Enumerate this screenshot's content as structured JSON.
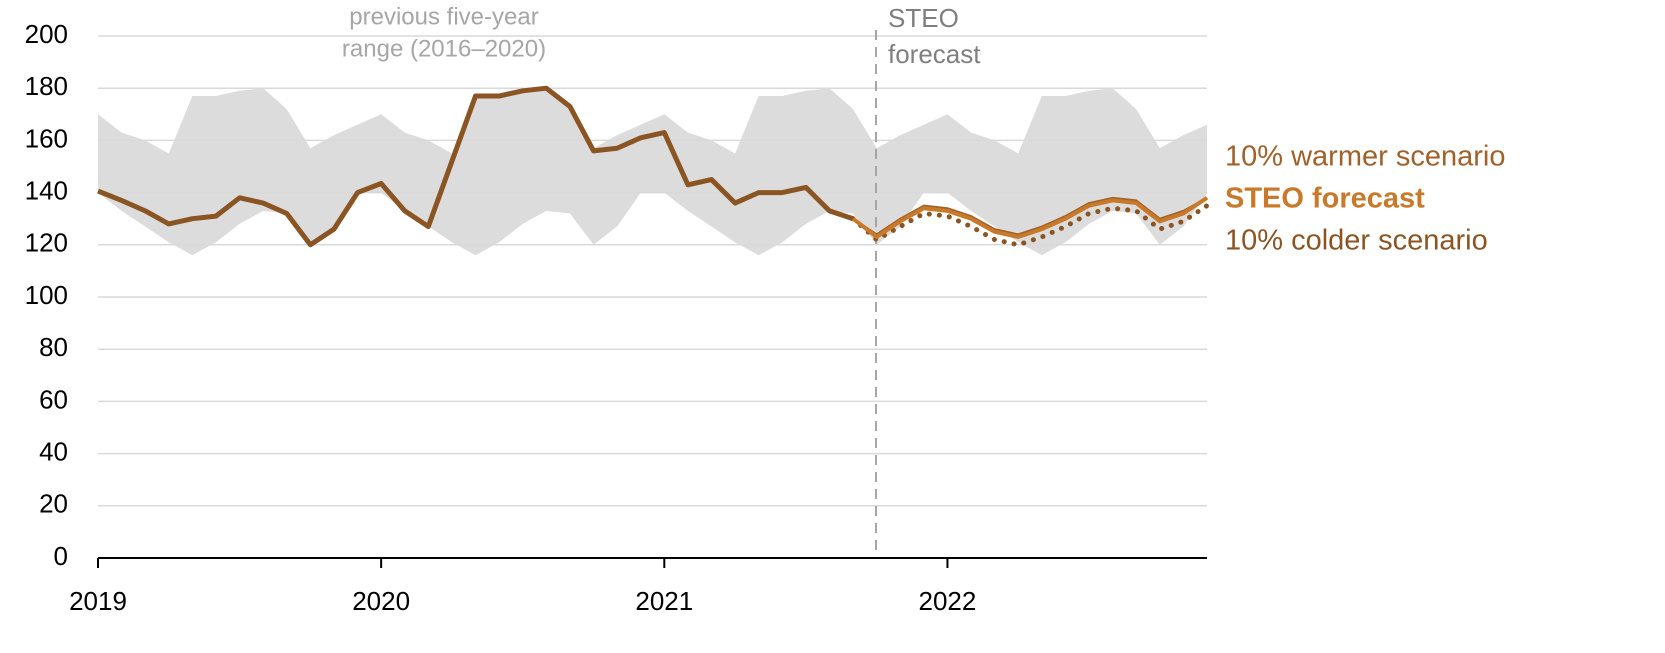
{
  "chart_data": {
    "type": "line",
    "categories": [
      "2019",
      null,
      null,
      null,
      null,
      null,
      null,
      null,
      null,
      null,
      null,
      null,
      "2020",
      null,
      null,
      null,
      null,
      null,
      null,
      null,
      null,
      null,
      null,
      null,
      "2021",
      null,
      null,
      null,
      null,
      null,
      null,
      null,
      null,
      null,
      null,
      null,
      "2022",
      null,
      null,
      null,
      null,
      null,
      null,
      null,
      null,
      null,
      null,
      null
    ],
    "ylim": [
      0,
      200
    ],
    "yticks": [
      0,
      20,
      40,
      60,
      80,
      100,
      120,
      140,
      160,
      180,
      200
    ],
    "grid": true,
    "range": {
      "label": [
        "previous five-year",
        "range (2016–2020)"
      ],
      "color": "#dcdcdc",
      "max": [
        170,
        163,
        160,
        155,
        177,
        177,
        179,
        180,
        172,
        157,
        162,
        166,
        170,
        163,
        160,
        155,
        177,
        177,
        179,
        180,
        172,
        157,
        162,
        166,
        170,
        163,
        160,
        155,
        177,
        177,
        179,
        180,
        172,
        157,
        162,
        166,
        170,
        163,
        160,
        155,
        177,
        177,
        179,
        180,
        172,
        157,
        162,
        166
      ],
      "min": [
        140,
        133,
        127,
        121,
        116,
        121,
        128,
        133,
        132,
        120,
        127,
        140,
        140,
        133,
        127,
        121,
        116,
        121,
        128,
        133,
        132,
        120,
        127,
        140,
        140,
        133,
        127,
        121,
        116,
        121,
        128,
        133,
        132,
        120,
        127,
        140,
        140,
        133,
        127,
        121,
        116,
        121,
        128,
        133,
        132,
        120,
        127,
        140
      ]
    },
    "forecast_label": [
      "STEO",
      "forecast"
    ],
    "series": [
      {
        "color": "#8b5523",
        "width": 5,
        "style": "solid",
        "values": [
          140.6,
          137,
          133,
          128,
          130,
          131,
          138,
          136,
          132,
          120,
          126,
          140,
          143.5,
          133,
          127,
          152,
          177,
          177,
          179,
          180,
          173,
          156,
          157,
          161,
          163,
          143,
          145,
          136,
          140,
          140,
          142,
          133,
          130,
          null,
          null,
          null,
          null,
          null,
          null,
          null,
          null,
          null,
          null,
          null,
          null,
          null,
          null,
          null
        ]
      },
      {
        "name": "10% warmer scenario",
        "color": "#a0612a",
        "width": 2,
        "style": "solid",
        "values": [
          null,
          null,
          null,
          null,
          null,
          null,
          null,
          null,
          null,
          null,
          null,
          null,
          null,
          null,
          null,
          null,
          null,
          null,
          null,
          null,
          null,
          null,
          null,
          null,
          null,
          null,
          null,
          null,
          null,
          null,
          null,
          null,
          130,
          124,
          130,
          135,
          134,
          131,
          126,
          124,
          127,
          131,
          136,
          138,
          137,
          130,
          133,
          138
        ]
      },
      {
        "name": "STEO forecast",
        "color": "#c87a2a",
        "width": 4,
        "style": "solid",
        "bold": true,
        "values": [
          null,
          null,
          null,
          null,
          null,
          null,
          null,
          null,
          null,
          null,
          null,
          null,
          null,
          null,
          null,
          null,
          null,
          null,
          null,
          null,
          null,
          null,
          null,
          null,
          null,
          null,
          null,
          null,
          null,
          null,
          null,
          null,
          130,
          123,
          129,
          134,
          133,
          130,
          125,
          123,
          126,
          130,
          135,
          137,
          136,
          129,
          132,
          138
        ]
      },
      {
        "name": "10% colder scenario",
        "color": "#8b5523",
        "width": 5,
        "style": "dotted",
        "values": [
          null,
          null,
          null,
          null,
          null,
          null,
          null,
          null,
          null,
          null,
          null,
          null,
          null,
          null,
          null,
          null,
          null,
          null,
          null,
          null,
          null,
          null,
          null,
          null,
          null,
          null,
          null,
          null,
          null,
          null,
          null,
          null,
          130,
          122,
          127,
          132,
          131,
          127,
          122,
          120,
          123,
          127,
          132,
          134,
          133,
          126,
          129,
          135
        ]
      }
    ]
  }
}
